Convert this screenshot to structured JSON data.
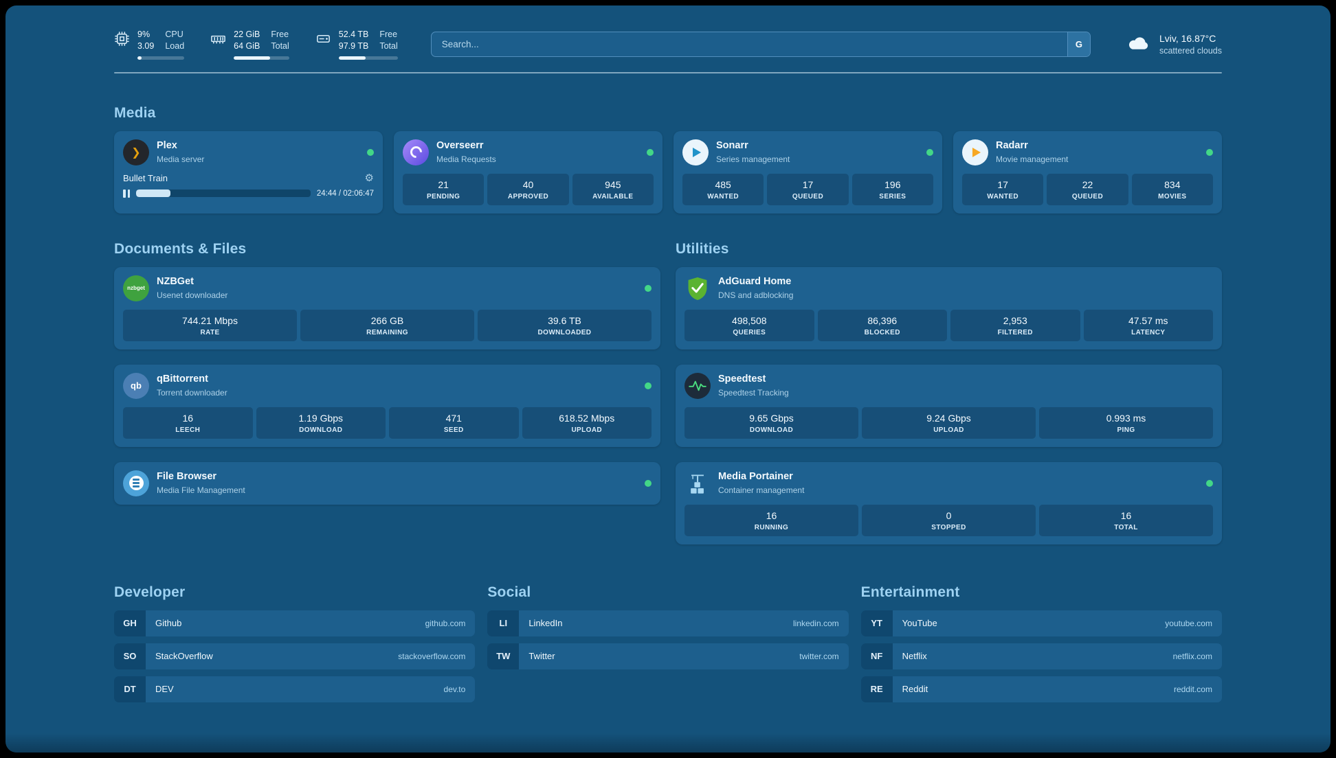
{
  "colors": {
    "background": "#14527b",
    "card": "#1e6190",
    "tile": "#174f78",
    "accent_title": "#9ed2f2",
    "status_online": "#43d787",
    "plex_accent": "#e5a00d"
  },
  "icons": {
    "gear": "⚙",
    "plex_glyph": "❯",
    "qbittorrent_glyph": "qb",
    "nzbget_glyph": "nzbget"
  },
  "header": {
    "cpu": {
      "icon": "cpu-icon",
      "value1": "9%",
      "label1": "CPU",
      "value2": "3.09",
      "label2": "Load",
      "bar_percent": 9
    },
    "ram": {
      "icon": "ram-icon",
      "value1": "22 GiB",
      "label1": "Free",
      "value2": "64 GiB",
      "label2": "Total",
      "bar_percent": 66
    },
    "disk": {
      "icon": "disk-icon",
      "value1": "52.4 TB",
      "label1": "Free",
      "value2": "97.9 TB",
      "label2": "Total",
      "bar_percent": 46
    },
    "search": {
      "placeholder": "Search...",
      "button": "G"
    },
    "weather": {
      "icon": "cloud-icon",
      "location": "Lviv, 16.87°C",
      "condition": "scattered clouds"
    }
  },
  "sections": {
    "media": {
      "title": "Media",
      "cards": [
        {
          "name": "Plex",
          "subtitle": "Media server",
          "icon": "plex-icon",
          "online": true,
          "player": {
            "title": "Bullet Train",
            "time": "24:44 / 02:06:47",
            "progress_percent": 19.5
          }
        },
        {
          "name": "Overseerr",
          "subtitle": "Media Requests",
          "icon": "overseerr-icon",
          "online": true,
          "stats": [
            {
              "value": "21",
              "label": "PENDING"
            },
            {
              "value": "40",
              "label": "APPROVED"
            },
            {
              "value": "945",
              "label": "AVAILABLE"
            }
          ]
        },
        {
          "name": "Sonarr",
          "subtitle": "Series management",
          "icon": "sonarr-icon",
          "online": true,
          "stats": [
            {
              "value": "485",
              "label": "WANTED"
            },
            {
              "value": "17",
              "label": "QUEUED"
            },
            {
              "value": "196",
              "label": "SERIES"
            }
          ]
        },
        {
          "name": "Radarr",
          "subtitle": "Movie management",
          "icon": "radarr-icon",
          "online": true,
          "stats": [
            {
              "value": "17",
              "label": "WANTED"
            },
            {
              "value": "22",
              "label": "QUEUED"
            },
            {
              "value": "834",
              "label": "MOVIES"
            }
          ]
        }
      ]
    },
    "documents": {
      "title": "Documents & Files",
      "cards": [
        {
          "name": "NZBGet",
          "subtitle": "Usenet downloader",
          "icon": "nzbget-icon",
          "online": true,
          "stats": [
            {
              "value": "744.21 Mbps",
              "label": "RATE"
            },
            {
              "value": "266 GB",
              "label": "REMAINING"
            },
            {
              "value": "39.6 TB",
              "label": "DOWNLOADED"
            }
          ]
        },
        {
          "name": "qBittorrent",
          "subtitle": "Torrent downloader",
          "icon": "qbittorrent-icon",
          "online": true,
          "stats": [
            {
              "value": "16",
              "label": "LEECH"
            },
            {
              "value": "1.19 Gbps",
              "label": "DOWNLOAD"
            },
            {
              "value": "471",
              "label": "SEED"
            },
            {
              "value": "618.52 Mbps",
              "label": "UPLOAD"
            }
          ]
        },
        {
          "name": "File Browser",
          "subtitle": "Media File Management",
          "icon": "filebrowser-icon",
          "online": true
        }
      ]
    },
    "utilities": {
      "title": "Utilities",
      "cards": [
        {
          "name": "AdGuard Home",
          "subtitle": "DNS and adblocking",
          "icon": "adguard-icon",
          "online": false,
          "stats": [
            {
              "value": "498,508",
              "label": "QUERIES"
            },
            {
              "value": "86,396",
              "label": "BLOCKED"
            },
            {
              "value": "2,953",
              "label": "FILTERED"
            },
            {
              "value": "47.57 ms",
              "label": "LATENCY"
            }
          ]
        },
        {
          "name": "Speedtest",
          "subtitle": "Speedtest Tracking",
          "icon": "speedtest-icon",
          "online": false,
          "stats": [
            {
              "value": "9.65 Gbps",
              "label": "DOWNLOAD"
            },
            {
              "value": "9.24 Gbps",
              "label": "UPLOAD"
            },
            {
              "value": "0.993 ms",
              "label": "PING"
            }
          ]
        },
        {
          "name": "Media Portainer",
          "subtitle": "Container management",
          "icon": "portainer-icon",
          "online": true,
          "stats": [
            {
              "value": "16",
              "label": "RUNNING"
            },
            {
              "value": "0",
              "label": "STOPPED"
            },
            {
              "value": "16",
              "label": "TOTAL"
            }
          ]
        }
      ]
    }
  },
  "bookmarks": [
    {
      "title": "Developer",
      "items": [
        {
          "abbr": "GH",
          "name": "Github",
          "domain": "github.com"
        },
        {
          "abbr": "SO",
          "name": "StackOverflow",
          "domain": "stackoverflow.com"
        },
        {
          "abbr": "DT",
          "name": "DEV",
          "domain": "dev.to"
        }
      ]
    },
    {
      "title": "Social",
      "items": [
        {
          "abbr": "LI",
          "name": "LinkedIn",
          "domain": "linkedin.com"
        },
        {
          "abbr": "TW",
          "name": "Twitter",
          "domain": "twitter.com"
        }
      ]
    },
    {
      "title": "Entertainment",
      "items": [
        {
          "abbr": "YT",
          "name": "YouTube",
          "domain": "youtube.com"
        },
        {
          "abbr": "NF",
          "name": "Netflix",
          "domain": "netflix.com"
        },
        {
          "abbr": "RE",
          "name": "Reddit",
          "domain": "reddit.com"
        }
      ]
    }
  ]
}
